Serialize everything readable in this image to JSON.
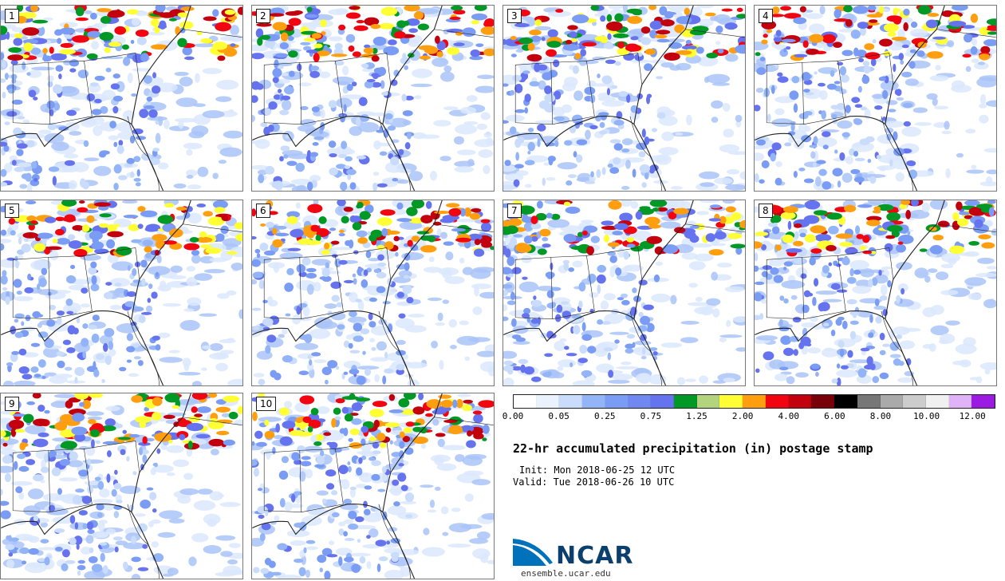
{
  "members": [
    "1",
    "2",
    "3",
    "4",
    "5",
    "6",
    "7",
    "8",
    "9",
    "10"
  ],
  "colorbar": {
    "colors": [
      "#ffffff",
      "#eaf2fe",
      "#c9dcfc",
      "#93b5f7",
      "#7a9cf4",
      "#7188f1",
      "#6673ef",
      "#009926",
      "#b3d37e",
      "#ffff33",
      "#ff9f0f",
      "#f00510",
      "#c3000e",
      "#780008",
      "#000000",
      "#777777",
      "#aaaaaa",
      "#cccccc",
      "#f0f0f0",
      "#e0b2f6",
      "#9b1be3"
    ],
    "tick_labels": [
      "0.00",
      "0.05",
      "0.25",
      "0.75",
      "1.25",
      "2.00",
      "4.00",
      "6.00",
      "8.00",
      "10.00",
      "12.00"
    ]
  },
  "title": "22-hr accumulated precipitation (in) postage stamp",
  "init": "Init: Mon 2018-06-25 12 UTC",
  "valid": "Valid: Tue 2018-06-26 10 UTC",
  "logo": {
    "text": "NCAR",
    "website": "ensemble.ucar.edu",
    "color": "#0b3f6e",
    "arc_color": "#0072bb"
  }
}
